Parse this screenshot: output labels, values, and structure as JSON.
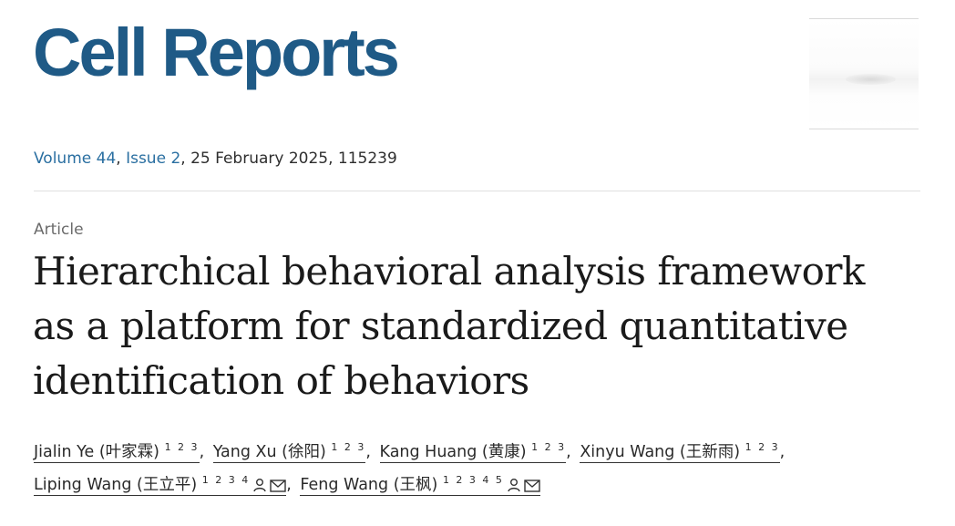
{
  "journal": {
    "name": "Cell Reports"
  },
  "citation": {
    "volume": "Volume 44",
    "issue": "Issue 2",
    "rest": ", 25 February 2025, 115239"
  },
  "article": {
    "type": "Article",
    "title_lines": [
      "Hierarchical behavioral analysis framework",
      "as a platform for standardized quantitative",
      "identification of behaviors"
    ]
  },
  "authors": [
    {
      "name": "Jialin Ye (叶家霖)",
      "affiliations": "1 2 3"
    },
    {
      "name": "Yang Xu (徐阳)",
      "affiliations": "1 2 3"
    },
    {
      "name": "Kang Huang (黄康)",
      "affiliations": "1 2 3"
    },
    {
      "name": "Xinyu Wang (王新雨)",
      "affiliations": "1 2 3"
    },
    {
      "name": "Liping Wang (王立平)",
      "affiliations": "1 2 3 4",
      "icons": [
        "person-icon",
        "envelope-icon"
      ]
    },
    {
      "name": "Feng Wang (王枫)",
      "affiliations": "1 2 3 4 5",
      "icons": [
        "person-icon",
        "envelope-icon"
      ]
    }
  ],
  "separator": ",",
  "colors": {
    "brand": "#1f5a86",
    "link": "#2a6fa1",
    "text": "#1a1a1a",
    "muted": "#6b6b6b"
  }
}
